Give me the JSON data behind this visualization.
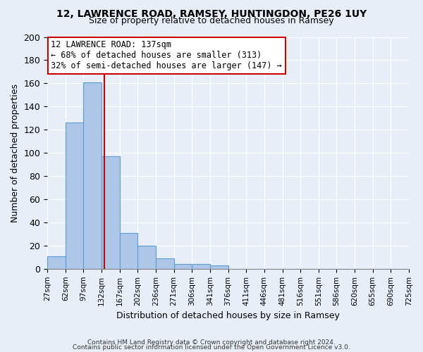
{
  "title1": "12, LAWRENCE ROAD, RAMSEY, HUNTINGDON, PE26 1UY",
  "title2": "Size of property relative to detached houses in Ramsey",
  "xlabel": "Distribution of detached houses by size in Ramsey",
  "ylabel": "Number of detached properties",
  "bin_labels": [
    "27sqm",
    "62sqm",
    "97sqm",
    "132sqm",
    "167sqm",
    "202sqm",
    "236sqm",
    "271sqm",
    "306sqm",
    "341sqm",
    "376sqm",
    "411sqm",
    "446sqm",
    "481sqm",
    "516sqm",
    "551sqm",
    "586sqm",
    "620sqm",
    "655sqm",
    "690sqm",
    "725sqm"
  ],
  "bar_heights": [
    11,
    126,
    161,
    97,
    31,
    20,
    9,
    4,
    4,
    3,
    0,
    0,
    0,
    0,
    0,
    0,
    0,
    0,
    0,
    0
  ],
  "bar_color": "#aec6e8",
  "bar_edge_color": "#5a9fd4",
  "property_size": 137,
  "annotation_text": "12 LAWRENCE ROAD: 137sqm\n← 68% of detached houses are smaller (313)\n32% of semi-detached houses are larger (147) →",
  "annotation_box_color": "#ffffff",
  "annotation_box_edge_color": "#cc0000",
  "vline_color": "#cc0000",
  "ylim": [
    0,
    200
  ],
  "yticks": [
    0,
    20,
    40,
    60,
    80,
    100,
    120,
    140,
    160,
    180,
    200
  ],
  "footer1": "Contains HM Land Registry data © Crown copyright and database right 2024.",
  "footer2": "Contains public sector information licensed under the Open Government Licence v3.0.",
  "background_color": "#e8eef7",
  "plot_background": "#e8eef7"
}
